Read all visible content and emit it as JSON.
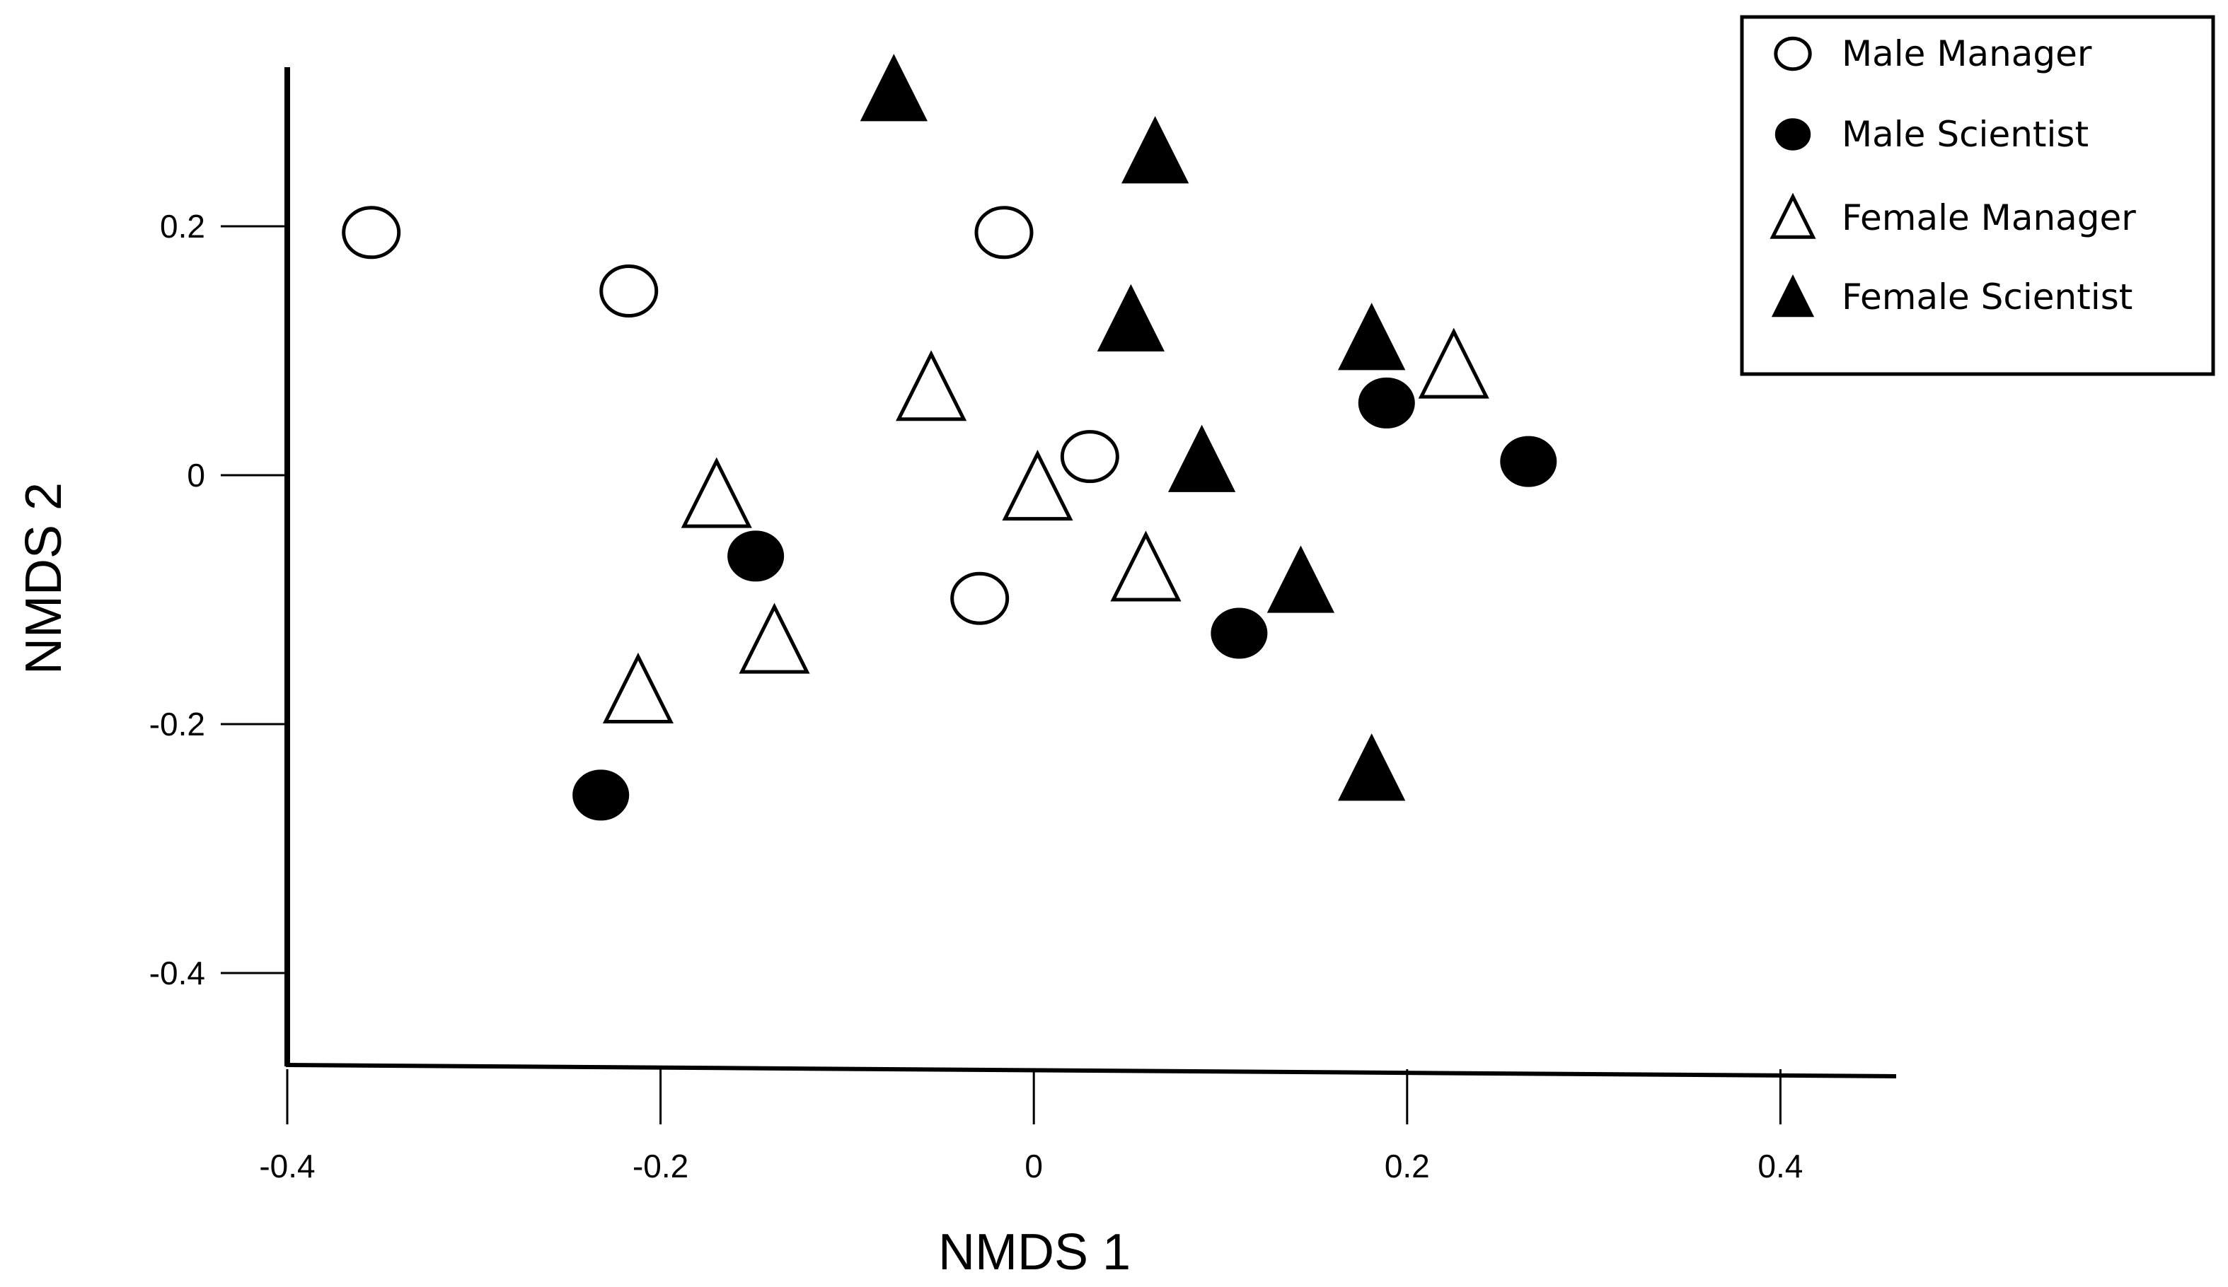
{
  "chart_data": {
    "type": "scatter",
    "xlabel": "NMDS 1",
    "ylabel": "NMDS 2",
    "xlim": [
      -0.4,
      0.46
    ],
    "ylim": [
      -0.475,
      0.33
    ],
    "x_ticks": [
      -0.4,
      -0.2,
      0,
      0.2,
      0.4
    ],
    "x_tick_labels": [
      "-0.4",
      "-0.2",
      "0",
      "0.2",
      "0.4"
    ],
    "y_ticks": [
      0.2,
      0,
      -0.2,
      -0.4
    ],
    "y_tick_labels": [
      "0.2",
      "0",
      "-0.2",
      "-0.4"
    ],
    "grid": false,
    "legend_position": "top-right",
    "series": [
      {
        "name": "Male Manager",
        "marker": "circle-open",
        "points": [
          [
            -0.355,
            0.195
          ],
          [
            -0.217,
            0.148
          ],
          [
            -0.016,
            0.195
          ],
          [
            0.03,
            0.015
          ],
          [
            -0.029,
            -0.099
          ]
        ]
      },
      {
        "name": "Male Scientist",
        "marker": "circle-filled",
        "points": [
          [
            0.189,
            0.058
          ],
          [
            0.265,
            0.011
          ],
          [
            -0.149,
            -0.065
          ],
          [
            0.11,
            -0.127
          ],
          [
            -0.232,
            -0.257
          ]
        ]
      },
      {
        "name": "Female Manager",
        "marker": "triangle-open",
        "points": [
          [
            0.225,
            0.088
          ],
          [
            -0.055,
            0.07
          ],
          [
            -0.17,
            -0.016
          ],
          [
            0.002,
            -0.01
          ],
          [
            0.06,
            -0.075
          ],
          [
            -0.139,
            -0.133
          ],
          [
            -0.212,
            -0.173
          ]
        ]
      },
      {
        "name": "Female Scientist",
        "marker": "triangle-filled",
        "points": [
          [
            -0.075,
            0.31
          ],
          [
            0.065,
            0.26
          ],
          [
            0.052,
            0.125
          ],
          [
            0.181,
            0.11
          ],
          [
            0.09,
            0.012
          ],
          [
            0.143,
            -0.085
          ],
          [
            0.181,
            -0.236
          ]
        ]
      }
    ]
  }
}
